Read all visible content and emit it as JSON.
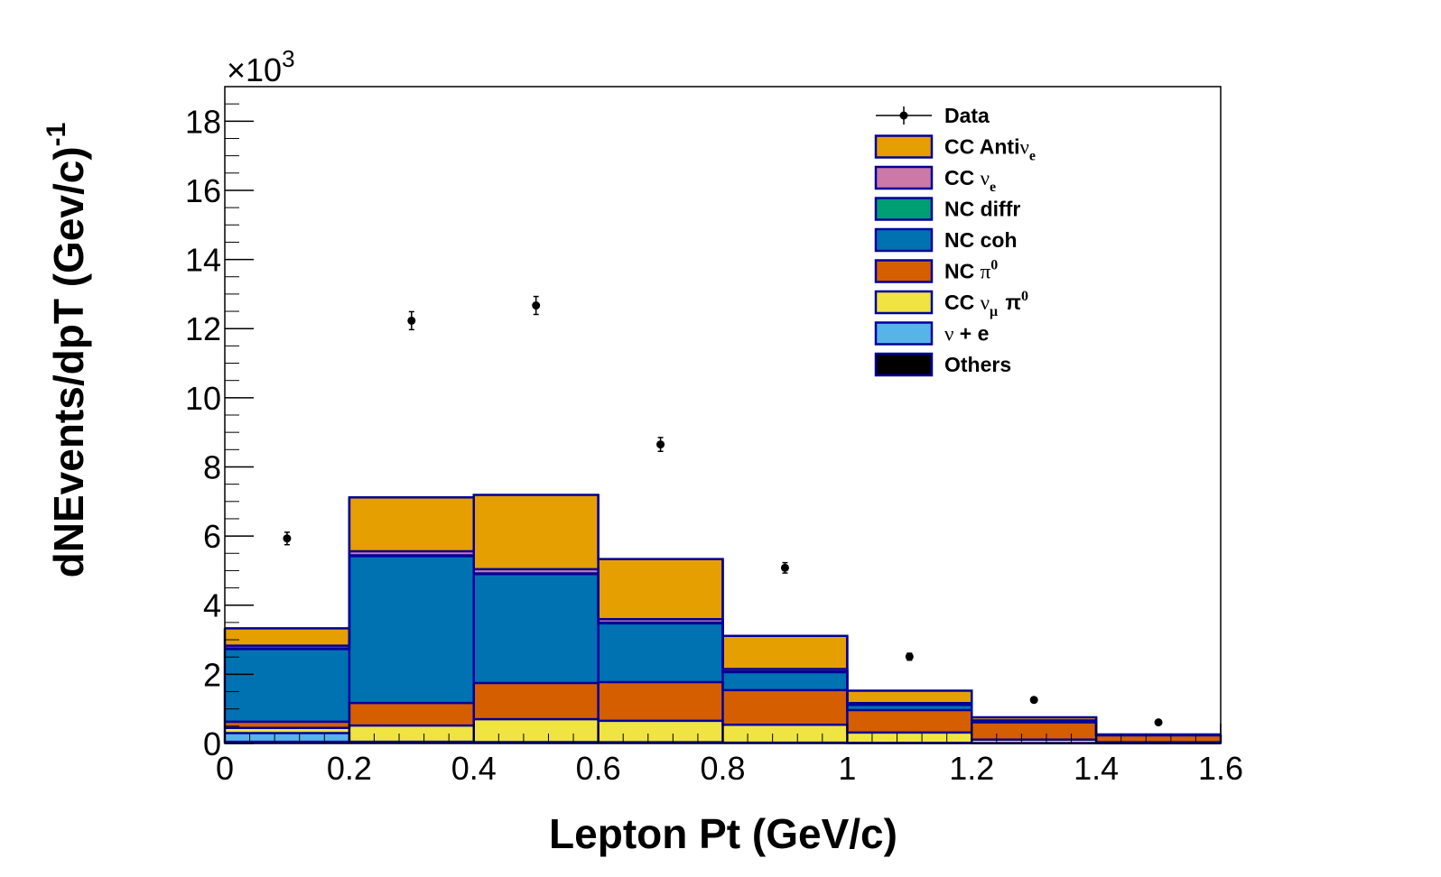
{
  "chart_data": {
    "type": "bar",
    "subtype": "stacked-histogram-with-data-points",
    "xlabel": "Lepton Pt (GeV/c)",
    "ylabel": "dNEvents/dpT (Gev/c)",
    "ylabel_superscript": "-1",
    "y_multiplier_label": "×10",
    "y_multiplier_exponent": "3",
    "xlim": [
      0,
      1.6
    ],
    "ylim": [
      0,
      19000
    ],
    "x_ticks": [
      0,
      0.2,
      0.4,
      0.6,
      0.8,
      1,
      1.2,
      1.4,
      1.6
    ],
    "x_tick_labels": [
      "0",
      "0.2",
      "0.4",
      "0.6",
      "0.8",
      "1",
      "1.2",
      "1.4",
      "1.6"
    ],
    "y_ticks": [
      0,
      2000,
      4000,
      6000,
      8000,
      10000,
      12000,
      14000,
      16000,
      18000
    ],
    "y_tick_labels": [
      "0",
      "2",
      "4",
      "6",
      "8",
      "10",
      "12",
      "14",
      "16",
      "18"
    ],
    "bin_edges": [
      0,
      0.2,
      0.4,
      0.6,
      0.8,
      1.0,
      1.2,
      1.4,
      1.6
    ],
    "series": [
      {
        "name": "Others",
        "color": "#000000",
        "values": [
          50,
          30,
          30,
          30,
          20,
          15,
          10,
          5
        ]
      },
      {
        "name": "ν + e",
        "color": "#56b4e9",
        "values": [
          250,
          20,
          10,
          5,
          3,
          2,
          1,
          0
        ]
      },
      {
        "name": "CC νμ π0",
        "color": "#f0e442",
        "values": [
          150,
          470,
          660,
          620,
          520,
          300,
          100,
          30
        ]
      },
      {
        "name": "NC π0",
        "color": "#d55e00",
        "values": [
          180,
          650,
          1050,
          1120,
          1000,
          650,
          500,
          200
        ]
      },
      {
        "name": "NC coh",
        "color": "#0072b2",
        "values": [
          2100,
          4250,
          3150,
          1700,
          520,
          150,
          30,
          5
        ]
      },
      {
        "name": "NC diffr",
        "color": "#009e73",
        "values": [
          20,
          20,
          20,
          20,
          20,
          10,
          5,
          2
        ]
      },
      {
        "name": "CC νe",
        "color": "#cc79a7",
        "values": [
          80,
          120,
          120,
          100,
          70,
          40,
          20,
          10
        ]
      },
      {
        "name": "CC Antiνe",
        "color": "#e69f00",
        "values": [
          500,
          1560,
          2150,
          1740,
          960,
          360,
          90,
          10
        ]
      }
    ],
    "data_points": {
      "name": "Data",
      "x": [
        0.1,
        0.3,
        0.5,
        0.7,
        0.9,
        1.1,
        1.3,
        1.5
      ],
      "y": [
        5930,
        12230,
        12670,
        8650,
        5080,
        2510,
        1260,
        610
      ],
      "yerr": [
        180,
        260,
        260,
        200,
        150,
        100,
        70,
        50
      ]
    },
    "legend": [
      {
        "key": "data",
        "label": "Data",
        "sym": "",
        "sub": "",
        "sup": ""
      },
      {
        "key": "ccanti",
        "label": "CC Anti",
        "sym": "ν",
        "sub": "e",
        "sup": "",
        "color": "#e69f00"
      },
      {
        "key": "ccnue",
        "label": "CC ",
        "sym": "ν",
        "sub": "e",
        "sup": "",
        "color": "#cc79a7"
      },
      {
        "key": "ncdiffr",
        "label": "NC diffr",
        "sym": "",
        "sub": "",
        "sup": "",
        "color": "#009e73"
      },
      {
        "key": "nccoh",
        "label": "NC coh",
        "sym": "",
        "sub": "",
        "sup": "",
        "color": "#0072b2"
      },
      {
        "key": "ncpi0",
        "label": "NC ",
        "sym": "π",
        "sub": "",
        "sup": "0",
        "color": "#d55e00"
      },
      {
        "key": "ccnumupi0",
        "label": "CC ",
        "sym": "ν",
        "sub": "μ",
        "sup": "",
        "tail": " π",
        "tail_sup": "0",
        "color": "#f0e442"
      },
      {
        "key": "nue",
        "label": "",
        "sym": "ν",
        "sub": "",
        "sup": "",
        "tail": " + e",
        "color": "#56b4e9"
      },
      {
        "key": "others",
        "label": "Others",
        "sym": "",
        "sub": "",
        "sup": "",
        "color": "#000000"
      }
    ],
    "legend_position": "top-right",
    "outline_color": "#000099"
  }
}
